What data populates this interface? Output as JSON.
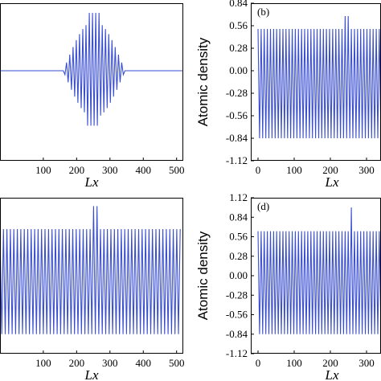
{
  "chart_data": [
    {
      "type": "line",
      "panel_label": "",
      "xlabel": "Lx",
      "ylabel": "",
      "xlim": [
        -30,
        520
      ],
      "ylim": [
        -1.12,
        0.84
      ],
      "xticks": [
        "100",
        "200",
        "300",
        "400",
        "500"
      ],
      "yticks": [],
      "series": [
        {
          "color": "#3a4fd0",
          "pattern": "wave-packet",
          "x_start": 160,
          "x_end": 345,
          "peak": 0.72,
          "dip": -0.62,
          "baseline": 0
        }
      ]
    },
    {
      "type": "line",
      "panel_label": "(b)",
      "xlabel": "Lx",
      "ylabel": "Atomic density",
      "xlim": [
        -20,
        340
      ],
      "ylim": [
        -1.12,
        0.84
      ],
      "xticks": [
        "0",
        "100",
        "200",
        "300"
      ],
      "yticks": [
        "0.84",
        "0.56",
        "0.28",
        "0.00",
        "-0.28",
        "-0.56",
        "-0.84",
        "-1.12"
      ],
      "series": [
        {
          "color": "#3a4fd0",
          "pattern": "uniform-oscillation",
          "x_start": 0,
          "x_end": 340,
          "upper": 0.52,
          "lower": -0.84,
          "spike_x": 245,
          "spike_high": 0.68,
          "spike_low": -0.84
        }
      ]
    },
    {
      "type": "line",
      "panel_label": "",
      "xlabel": "Lx",
      "ylabel": "",
      "xlim": [
        -30,
        520
      ],
      "ylim": [
        -1.12,
        1.12
      ],
      "xticks": [
        "100",
        "200",
        "300",
        "400",
        "500"
      ],
      "yticks": [],
      "series": [
        {
          "color": "#3a4fd0",
          "pattern": "uniform-oscillation",
          "x_start": -30,
          "x_end": 512,
          "upper": 0.67,
          "lower": -0.84,
          "spike_x": 255,
          "spike_high": 1.0,
          "spike_low": -0.84
        }
      ]
    },
    {
      "type": "line",
      "panel_label": "(d)",
      "xlabel": "Lx",
      "ylabel": "Atomic density",
      "xlim": [
        -20,
        340
      ],
      "ylim": [
        -1.12,
        1.12
      ],
      "xticks": [
        "0",
        "100",
        "200",
        "300"
      ],
      "yticks": [
        "1.12",
        "0.84",
        "0.56",
        "0.28",
        "0.00",
        "-0.28",
        "-0.56",
        "-0.84",
        "-1.12"
      ],
      "series": [
        {
          "color": "#3a4fd0",
          "pattern": "uniform-oscillation",
          "x_start": 0,
          "x_end": 340,
          "upper": 0.64,
          "lower": -0.84,
          "spike_x": 258,
          "spike_high": 0.98,
          "spike_low": -0.84
        }
      ]
    }
  ]
}
